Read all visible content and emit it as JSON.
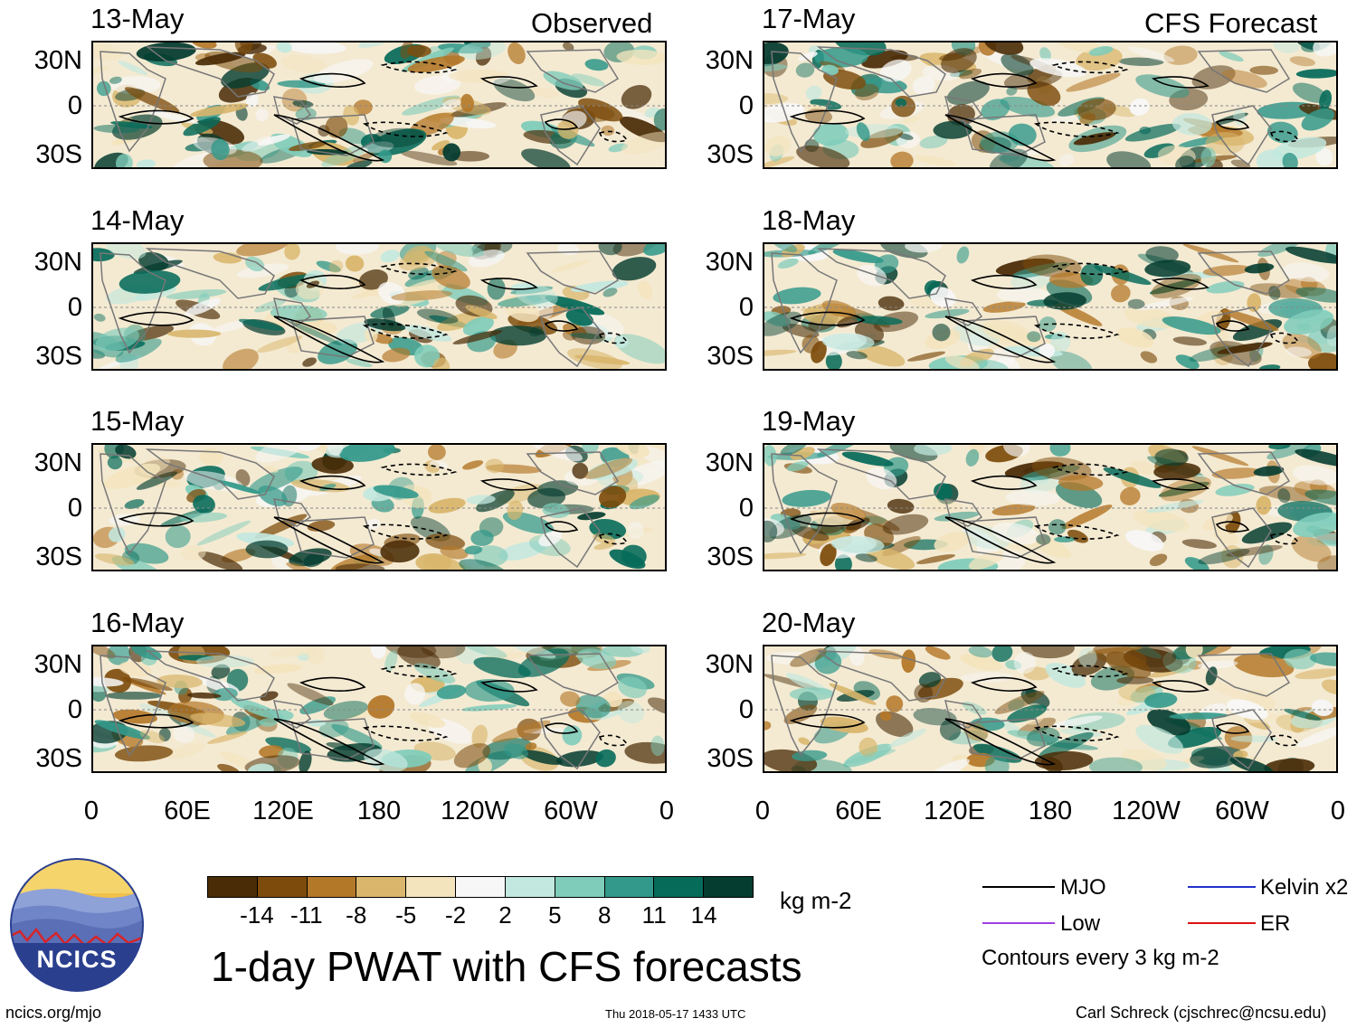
{
  "headers": {
    "observed": "Observed",
    "forecast": "CFS Forecast"
  },
  "panels_left": [
    {
      "date": "13-May"
    },
    {
      "date": "14-May"
    },
    {
      "date": "15-May"
    },
    {
      "date": "16-May"
    }
  ],
  "panels_right": [
    {
      "date": "17-May"
    },
    {
      "date": "18-May"
    },
    {
      "date": "19-May"
    },
    {
      "date": "20-May"
    }
  ],
  "lat_labels": [
    "30N",
    "0",
    "30S"
  ],
  "lon_labels": [
    "0",
    "60E",
    "120E",
    "180",
    "120W",
    "60W",
    "0"
  ],
  "colorbar": {
    "colors": [
      "#4a2c07",
      "#7d4c0c",
      "#b47829",
      "#d9b66b",
      "#f4e4bd",
      "#f7f7f7",
      "#c2e8df",
      "#7fccba",
      "#33998a",
      "#076b5a",
      "#053d30"
    ],
    "labels": [
      "-14",
      "-11",
      "-8",
      "-5",
      "-2",
      "2",
      "5",
      "8",
      "11",
      "14"
    ],
    "units": "kg m-2"
  },
  "title": "1-day PWAT with CFS forecasts",
  "legend": {
    "mjo": "MJO",
    "kelvin": "Kelvin x2",
    "low": "Low",
    "er": "ER",
    "mjo_color": "#000000",
    "kelvin_color": "#2233cc",
    "low_color": "#a040e0",
    "er_color": "#dd1111",
    "contours_note": "Contours every 3 kg m-2"
  },
  "logo": {
    "text": "NCICS"
  },
  "footer": {
    "url": "ncics.org/mjo",
    "timestamp": "Thu 2018-05-17 1433 UTC",
    "credit": "Carl Schreck (cjschrec@ncsu.edu)"
  }
}
